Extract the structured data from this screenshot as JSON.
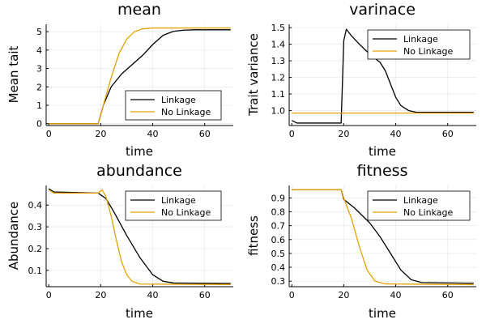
{
  "chart_data": [
    {
      "type": "line",
      "title": "mean",
      "xlabel": "time",
      "ylabel": "Mean tait",
      "xlim": [
        -1,
        71
      ],
      "ylim": [
        -0.1,
        5.4
      ],
      "xticks": [
        0,
        20,
        40,
        60
      ],
      "yticks": [
        0,
        1,
        2,
        3,
        4,
        5
      ],
      "grid": true,
      "legend": "bottom-right",
      "series": [
        {
          "name": "Linkage",
          "color": "#000000",
          "points": [
            [
              0,
              0
            ],
            [
              19,
              0
            ],
            [
              21,
              1.0
            ],
            [
              24,
              2.0
            ],
            [
              28,
              2.7
            ],
            [
              32,
              3.2
            ],
            [
              36,
              3.7
            ],
            [
              40,
              4.3
            ],
            [
              44,
              4.8
            ],
            [
              48,
              5.02
            ],
            [
              52,
              5.08
            ],
            [
              56,
              5.1
            ],
            [
              70,
              5.1
            ]
          ]
        },
        {
          "name": "No Linkage",
          "color": "#e6a100",
          "points": [
            [
              0,
              0
            ],
            [
              19,
              0
            ],
            [
              21,
              1.0
            ],
            [
              24,
              2.5
            ],
            [
              27,
              3.8
            ],
            [
              30,
              4.6
            ],
            [
              33,
              5.0
            ],
            [
              36,
              5.15
            ],
            [
              40,
              5.2
            ],
            [
              70,
              5.2
            ]
          ]
        }
      ]
    },
    {
      "type": "line",
      "title": "varinace",
      "xlabel": "time",
      "ylabel": "Trait variance",
      "xlim": [
        -1,
        71
      ],
      "ylim": [
        0.91,
        1.52
      ],
      "xticks": [
        0,
        20,
        40,
        60
      ],
      "yticks": [
        1.0,
        1.1,
        1.2,
        1.3,
        1.4,
        1.5
      ],
      "ytick_labels": [
        "1.0",
        "1.1",
        "1.2",
        "1.3",
        "1.4",
        "1.5"
      ],
      "grid": true,
      "legend": "top-right",
      "series": [
        {
          "name": "Linkage",
          "color": "#000000",
          "points": [
            [
              0,
              0.94
            ],
            [
              2,
              0.925
            ],
            [
              19,
              0.925
            ],
            [
              20,
              1.42
            ],
            [
              21,
              1.49
            ],
            [
              23,
              1.45
            ],
            [
              26,
              1.4
            ],
            [
              30,
              1.34
            ],
            [
              34,
              1.29
            ],
            [
              36,
              1.24
            ],
            [
              38,
              1.16
            ],
            [
              40,
              1.08
            ],
            [
              42,
              1.03
            ],
            [
              45,
              1.0
            ],
            [
              48,
              0.99
            ],
            [
              70,
              0.99
            ]
          ]
        },
        {
          "name": "No Linkage",
          "color": "#e6a100",
          "points": [
            [
              0,
              0.985
            ],
            [
              70,
              0.985
            ]
          ]
        }
      ]
    },
    {
      "type": "line",
      "title": "abundance",
      "xlabel": "time",
      "ylabel": "Abundance",
      "xlim": [
        -1,
        71
      ],
      "ylim": [
        0.025,
        0.49
      ],
      "xticks": [
        0,
        20,
        40,
        60
      ],
      "yticks": [
        0.1,
        0.2,
        0.3,
        0.4
      ],
      "ytick_labels": [
        "0.1",
        "0.2",
        "0.3",
        "0.4"
      ],
      "grid": true,
      "legend": "top-right",
      "series": [
        {
          "name": "Linkage",
          "color": "#000000",
          "points": [
            [
              0,
              0.475
            ],
            [
              2,
              0.46
            ],
            [
              19,
              0.455
            ],
            [
              22,
              0.43
            ],
            [
              25,
              0.37
            ],
            [
              30,
              0.26
            ],
            [
              35,
              0.16
            ],
            [
              40,
              0.08
            ],
            [
              44,
              0.05
            ],
            [
              48,
              0.042
            ],
            [
              70,
              0.04
            ]
          ]
        },
        {
          "name": "No Linkage",
          "color": "#e6a100",
          "points": [
            [
              0,
              0.47
            ],
            [
              2,
              0.455
            ],
            [
              19,
              0.455
            ],
            [
              20.5,
              0.47
            ],
            [
              22,
              0.44
            ],
            [
              24,
              0.35
            ],
            [
              26,
              0.24
            ],
            [
              28,
              0.14
            ],
            [
              30,
              0.08
            ],
            [
              32,
              0.05
            ],
            [
              35,
              0.037
            ],
            [
              70,
              0.035
            ]
          ]
        }
      ]
    },
    {
      "type": "line",
      "title": "fitness",
      "xlabel": "time",
      "ylabel": "fitness",
      "xlim": [
        -1,
        71
      ],
      "ylim": [
        0.26,
        0.99
      ],
      "xticks": [
        0,
        20,
        40,
        60
      ],
      "yticks": [
        0.3,
        0.4,
        0.5,
        0.6,
        0.7,
        0.8,
        0.9
      ],
      "ytick_labels": [
        "0.3",
        "0.4",
        "0.5",
        "0.6",
        "0.7",
        "0.8",
        "0.9"
      ],
      "grid": true,
      "legend": "top-right",
      "series": [
        {
          "name": "Linkage",
          "color": "#000000",
          "points": [
            [
              0,
              0.96
            ],
            [
              19,
              0.96
            ],
            [
              20,
              0.89
            ],
            [
              24,
              0.83
            ],
            [
              30,
              0.72
            ],
            [
              34,
              0.62
            ],
            [
              38,
              0.5
            ],
            [
              42,
              0.38
            ],
            [
              46,
              0.31
            ],
            [
              50,
              0.29
            ],
            [
              70,
              0.285
            ]
          ]
        },
        {
          "name": "No Linkage",
          "color": "#e6a100",
          "points": [
            [
              0,
              0.96
            ],
            [
              19,
              0.96
            ],
            [
              20,
              0.9
            ],
            [
              23,
              0.75
            ],
            [
              26,
              0.55
            ],
            [
              29,
              0.38
            ],
            [
              32,
              0.3
            ],
            [
              36,
              0.28
            ],
            [
              70,
              0.275
            ]
          ]
        }
      ]
    }
  ]
}
